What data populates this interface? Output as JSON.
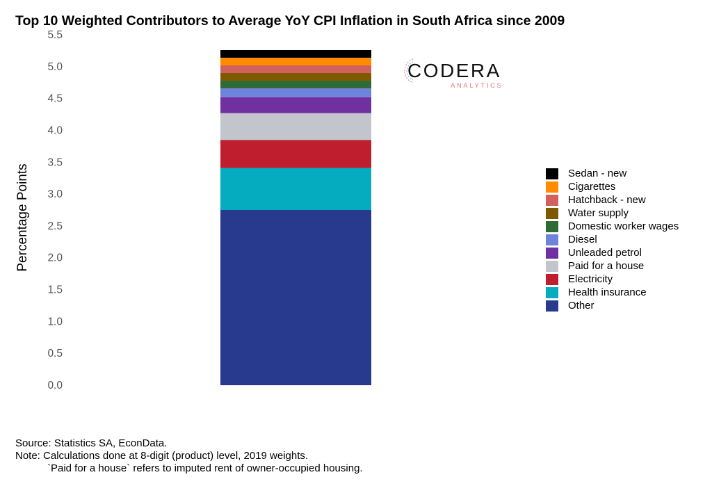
{
  "title": "Top 10 Weighted Contributors to Average YoY CPI Inflation in South Africa since 2009",
  "logo": {
    "word": "CODERA",
    "sub": "ANALYTICS"
  },
  "footer": {
    "source": "Source: Statistics SA, EconData.",
    "note": "Note: Calculations done at 8-digit (product) level, 2019 weights.",
    "note2": "`Paid for a house` refers to imputed rent of owner-occupied housing."
  },
  "chart_data": {
    "type": "bar",
    "stacked": true,
    "title": "Top 10 Weighted Contributors to Average YoY CPI Inflation in South Africa since 2009",
    "xlabel": "",
    "ylabel": "Percentage Points",
    "ylim": [
      0,
      5.5
    ],
    "yticks": [
      "0.0",
      "0.5",
      "1.0",
      "1.5",
      "2.0",
      "2.5",
      "3.0",
      "3.5",
      "4.0",
      "4.5",
      "5.0",
      "5.5"
    ],
    "grid": false,
    "legend_position": "right",
    "series": [
      {
        "name": "Other",
        "value": 2.75,
        "color": "#273a8e"
      },
      {
        "name": "Health insurance",
        "value": 0.66,
        "color": "#05acbf"
      },
      {
        "name": "Electricity",
        "value": 0.44,
        "color": "#be1e2d"
      },
      {
        "name": "Paid for a house",
        "value": 0.42,
        "color": "#c3c5cc"
      },
      {
        "name": "Unleaded petrol",
        "value": 0.25,
        "color": "#7030a0"
      },
      {
        "name": "Diesel",
        "value": 0.14,
        "color": "#6e84db"
      },
      {
        "name": "Domestic worker wages",
        "value": 0.12,
        "color": "#2e6b37"
      },
      {
        "name": "Water supply",
        "value": 0.12,
        "color": "#7d5a00"
      },
      {
        "name": "Hatchback - new",
        "value": 0.12,
        "color": "#d2605c"
      },
      {
        "name": "Cigarettes",
        "value": 0.12,
        "color": "#ff8c00"
      },
      {
        "name": "Sedan - new",
        "value": 0.12,
        "color": "#000000"
      }
    ]
  }
}
